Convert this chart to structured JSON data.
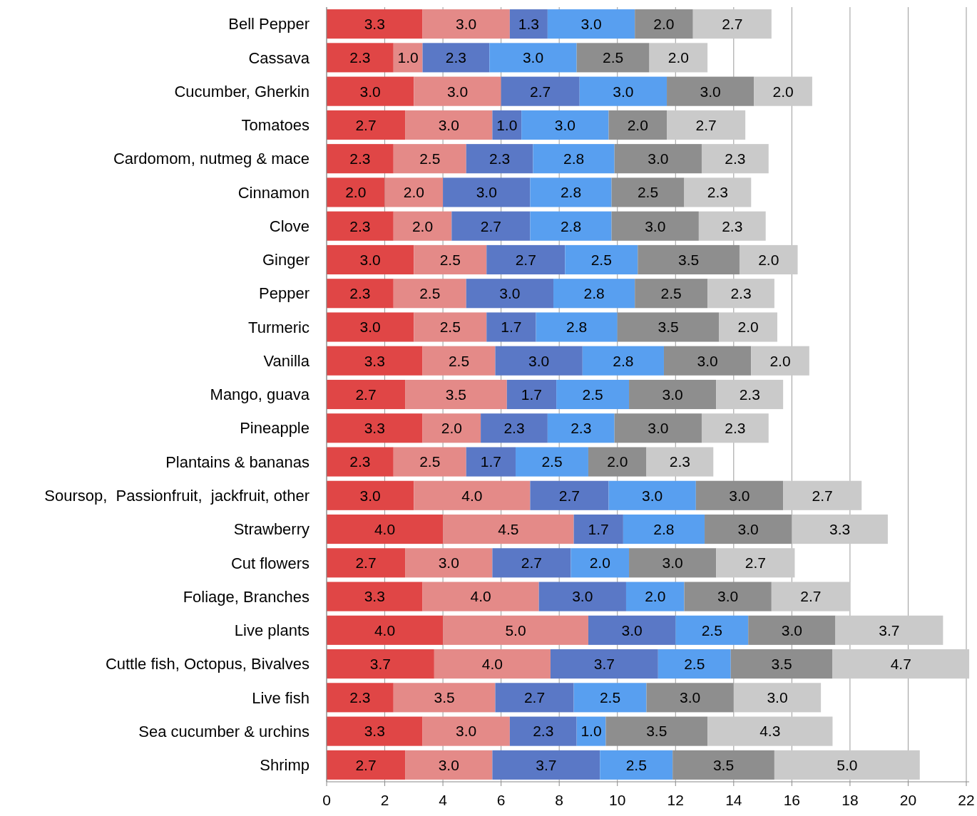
{
  "chart_data": {
    "type": "bar",
    "orientation": "horizontal",
    "stacked": true,
    "grid": "x",
    "categories": [
      "Bell Pepper",
      "Cassava",
      "Cucumber, Gherkin",
      "Tomatoes",
      "Cardomom, nutmeg & mace",
      "Cinnamon",
      "Clove",
      "Ginger",
      "Pepper",
      "Turmeric",
      "Vanilla",
      "Mango, guava",
      "Pineapple",
      "Plantains & bananas",
      "Soursop,  Passionfruit,  jackfruit, other",
      "Strawberry",
      "Cut flowers",
      "Foliage, Branches",
      "Live plants",
      "Cuttle fish, Octopus, Bivalves",
      "Live fish",
      "Sea cucumber & urchins",
      "Shrimp"
    ],
    "xlim": [
      0,
      22.1
    ],
    "xticks": [
      0,
      2,
      4,
      6,
      8,
      10,
      12,
      14,
      16,
      18,
      20,
      22
    ],
    "series": [
      {
        "color": "#e04646",
        "values": [
          3.3,
          2.3,
          3.0,
          2.7,
          2.3,
          2.0,
          2.3,
          3.0,
          2.3,
          3.0,
          3.3,
          2.7,
          3.3,
          2.3,
          3.0,
          4.0,
          2.7,
          3.3,
          4.0,
          3.7,
          2.3,
          3.3,
          2.7
        ],
        "value_labels": [
          "3.3",
          "2.3",
          "3.0",
          "2.7",
          "2.3",
          "2.0",
          "2.3",
          "3.0",
          "2.3",
          "3.0",
          "3.3",
          "2.7",
          "3.3",
          "2.3",
          "3.0",
          "4.0",
          "2.7",
          "3.3",
          "4.0",
          "3.7",
          "2.3",
          "3.3",
          "2.7"
        ]
      },
      {
        "color": "#e48a88",
        "values": [
          3.0,
          1.0,
          3.0,
          3.0,
          2.5,
          2.0,
          2.0,
          2.5,
          2.5,
          2.5,
          2.5,
          3.5,
          2.0,
          2.5,
          4.0,
          4.5,
          3.0,
          4.0,
          5.0,
          4.0,
          3.5,
          3.0,
          3.0
        ],
        "value_labels": [
          "3.0",
          "1.0",
          "3.0",
          "3.0",
          "2.5",
          "2.0",
          "2.0",
          "2.5",
          "2.5",
          "2.5",
          "2.5",
          "3.5",
          "2.0",
          "2.5",
          "4.0",
          "4.5",
          "3.0",
          "4.0",
          "5.0",
          "4.0",
          "3.5",
          "3.0",
          "3.0"
        ]
      },
      {
        "color": "#5a78c6",
        "values": [
          1.3,
          2.3,
          2.7,
          1.0,
          2.3,
          3.0,
          2.7,
          2.7,
          3.0,
          1.7,
          3.0,
          1.7,
          2.3,
          1.7,
          2.7,
          1.7,
          2.7,
          3.0,
          3.0,
          3.7,
          2.7,
          2.3,
          3.7
        ],
        "value_labels": [
          "1.3",
          "2.3",
          "2.7",
          "1.0",
          "2.3",
          "3.0",
          "2.7",
          "2.7",
          "3.0",
          "1.7",
          "3.0",
          "1.7",
          "2.3",
          "1.7",
          "2.7",
          "1.7",
          "2.7",
          "3.0",
          "3.0",
          "3.7",
          "2.7",
          "2.3",
          "3.7"
        ]
      },
      {
        "color": "#589ff0",
        "values": [
          3.0,
          3.0,
          3.0,
          3.0,
          2.8,
          2.8,
          2.8,
          2.5,
          2.8,
          2.8,
          2.8,
          2.5,
          2.3,
          2.5,
          3.0,
          2.8,
          2.0,
          2.0,
          2.5,
          2.5,
          2.5,
          1.0,
          2.5
        ],
        "value_labels": [
          "3.0",
          "3.0",
          "3.0",
          "3.0",
          "2.8",
          "2.8",
          "2.8",
          "2.5",
          "2.8",
          "2.8",
          "2.8",
          "2.5",
          "2.3",
          "2.5",
          "3.0",
          "2.8",
          "2.0",
          "2.0",
          "2.5",
          "2.5",
          "2.5",
          "1.0",
          "2.5"
        ]
      },
      {
        "color": "#8e8e8e",
        "values": [
          2.0,
          2.5,
          3.0,
          2.0,
          3.0,
          2.5,
          3.0,
          3.5,
          2.5,
          3.5,
          3.0,
          3.0,
          3.0,
          2.0,
          3.0,
          3.0,
          3.0,
          3.0,
          3.0,
          3.5,
          3.0,
          3.5,
          3.5
        ],
        "value_labels": [
          "2.0",
          "2.5",
          "3.0",
          "2.0",
          "3.0",
          "2.5",
          "3.0",
          "3.5",
          "2.5",
          "3.5",
          "3.0",
          "3.0",
          "3.0",
          "2.0",
          "3.0",
          "3.0",
          "3.0",
          "3.0",
          "3.0",
          "3.5",
          "3.0",
          "3.5",
          "3.5"
        ]
      },
      {
        "color": "#cacaca",
        "values": [
          2.7,
          2.0,
          2.0,
          2.7,
          2.3,
          2.3,
          2.3,
          2.0,
          2.3,
          2.0,
          2.0,
          2.3,
          2.3,
          2.3,
          2.7,
          3.3,
          2.7,
          2.7,
          3.7,
          4.7,
          3.0,
          4.3,
          5.0
        ],
        "value_labels": [
          "2.7",
          "2.0",
          "2.0",
          "2.7",
          "2.3",
          "2.3",
          "2.3",
          "2.0",
          "2.3",
          "2.0",
          "2.0",
          "2.3",
          "2.3",
          "2.3",
          "2.7",
          "3.3",
          "2.7",
          "2.7",
          "3.7",
          "4.7",
          "3.0",
          "4.3",
          "5.0"
        ]
      }
    ]
  }
}
